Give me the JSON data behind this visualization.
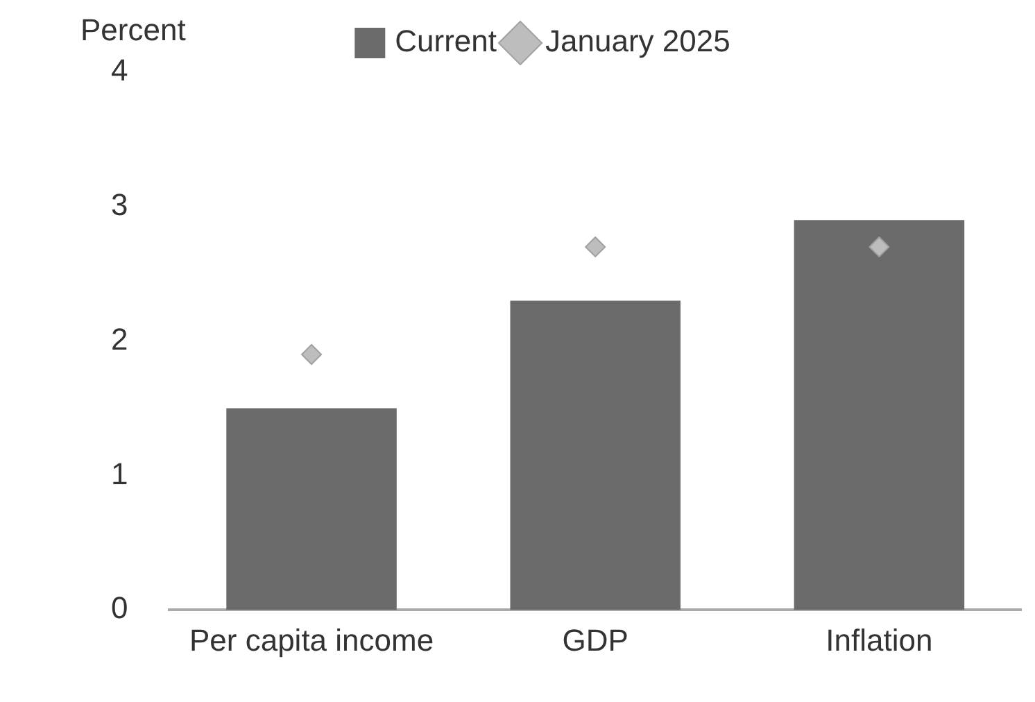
{
  "chart_data": {
    "type": "bar",
    "ylabel": "Percent",
    "categories": [
      "Per capita income",
      "GDP",
      "Inflation"
    ],
    "series": [
      {
        "name": "Current",
        "color": "#6b6b6b",
        "values": [
          1.5,
          2.3,
          2.9
        ]
      },
      {
        "name": "January 2025",
        "type": "scatter",
        "color": "#bdbdbd",
        "values": [
          1.9,
          2.7,
          2.7
        ]
      }
    ],
    "ylim": [
      0,
      4
    ],
    "yticks": [
      0,
      1,
      2,
      3,
      4
    ],
    "grid": false,
    "legend": "top",
    "marker": "diamond"
  }
}
